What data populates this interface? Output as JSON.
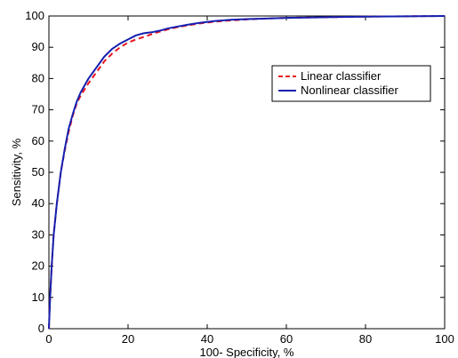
{
  "chart_data": {
    "type": "line",
    "title": "",
    "xlabel": "100- Specificity, %",
    "ylabel": "Sensitivity, %",
    "xlim": [
      0,
      100
    ],
    "ylim": [
      0,
      100
    ],
    "xticks": [
      0,
      20,
      40,
      60,
      80,
      100
    ],
    "yticks": [
      0,
      10,
      20,
      30,
      40,
      50,
      60,
      70,
      80,
      90,
      100
    ],
    "grid": false,
    "legend_position": "upper-right",
    "series": [
      {
        "name": "Linear classifier",
        "color": "#e8141e",
        "style": "dashed",
        "x": [
          0,
          0.3,
          0.7,
          1.2,
          2,
          3,
          4,
          5,
          6,
          7,
          8,
          10,
          12,
          14,
          16,
          18,
          20,
          22,
          24,
          26,
          28,
          30,
          32,
          35,
          38,
          42,
          46,
          50,
          55,
          60,
          70,
          80,
          90,
          100
        ],
        "y": [
          0,
          10,
          20,
          30,
          40,
          50,
          57,
          63,
          68,
          72,
          74.5,
          78.5,
          82,
          85.5,
          88,
          90,
          91.5,
          92.5,
          93.3,
          94.2,
          95,
          95.7,
          96.3,
          97,
          97.6,
          98.2,
          98.6,
          98.9,
          99.2,
          99.4,
          99.6,
          99.8,
          99.9,
          100
        ]
      },
      {
        "name": "Nonlinear classifier",
        "color": "#1520b0",
        "style": "solid",
        "x": [
          0,
          0.3,
          0.7,
          1.2,
          2,
          3,
          4,
          5,
          6,
          7,
          8,
          10,
          12,
          14,
          16,
          18,
          20,
          22,
          24,
          26,
          28,
          30,
          32,
          35,
          38,
          42,
          46,
          50,
          55,
          60,
          70,
          80,
          90,
          100
        ],
        "y": [
          0,
          10,
          20,
          30,
          40,
          50,
          57.5,
          64,
          68.5,
          72.5,
          75.5,
          80,
          83.5,
          87,
          89.5,
          91.2,
          92.5,
          93.8,
          94.5,
          94.8,
          95.3,
          96,
          96.5,
          97.2,
          97.8,
          98.4,
          98.8,
          99,
          99.2,
          99.4,
          99.6,
          99.8,
          99.9,
          100
        ]
      }
    ]
  }
}
